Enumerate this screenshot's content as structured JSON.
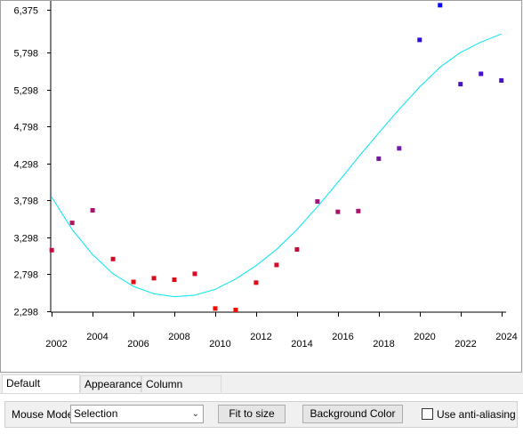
{
  "chart_data": {
    "type": "scatter",
    "y_ticks": [
      "6,375",
      "5,798",
      "5,298",
      "4,798",
      "4,298",
      "3,798",
      "3,298",
      "2,798",
      "2,298"
    ],
    "y_tick_values": [
      6375,
      5798,
      5298,
      4798,
      4298,
      3798,
      3298,
      2798,
      2298
    ],
    "x_tick_labels": [
      "2002",
      "2004",
      "2006",
      "2008",
      "2010",
      "2012",
      "2014",
      "2016",
      "2018",
      "2020",
      "2022",
      "2024"
    ],
    "x_tick_values": [
      2002,
      2004,
      2006,
      2008,
      2010,
      2012,
      2014,
      2016,
      2018,
      2020,
      2022,
      2024
    ],
    "xlim": [
      2001.95,
      2024.1
    ],
    "ylim": [
      2280,
      6390
    ],
    "points": [
      {
        "x": 2002,
        "y": 3120,
        "color": "#c80c3c"
      },
      {
        "x": 2003,
        "y": 3490,
        "color": "#b4145a"
      },
      {
        "x": 2004,
        "y": 3660,
        "color": "#a8146a"
      },
      {
        "x": 2005,
        "y": 3000,
        "color": "#d20a2a"
      },
      {
        "x": 2006,
        "y": 2690,
        "color": "#e00a14"
      },
      {
        "x": 2007,
        "y": 2740,
        "color": "#dc0a1a"
      },
      {
        "x": 2008,
        "y": 2720,
        "color": "#dc0a1a"
      },
      {
        "x": 2009,
        "y": 2800,
        "color": "#d80a20"
      },
      {
        "x": 2010,
        "y": 2330,
        "color": "#f00a00"
      },
      {
        "x": 2011,
        "y": 2310,
        "color": "#f00a00"
      },
      {
        "x": 2012,
        "y": 2680,
        "color": "#e00a14"
      },
      {
        "x": 2013,
        "y": 2920,
        "color": "#d40a28"
      },
      {
        "x": 2014,
        "y": 3130,
        "color": "#c80c3c"
      },
      {
        "x": 2015,
        "y": 3780,
        "color": "#a01478"
      },
      {
        "x": 2016,
        "y": 3640,
        "color": "#a8146a"
      },
      {
        "x": 2017,
        "y": 3650,
        "color": "#a8146a"
      },
      {
        "x": 2018,
        "y": 4360,
        "color": "#7a14a0"
      },
      {
        "x": 2019,
        "y": 4500,
        "color": "#701aa8"
      },
      {
        "x": 2020,
        "y": 5970,
        "color": "#2c0ae0"
      },
      {
        "x": 2021,
        "y": 6440,
        "color": "#0a0af5"
      },
      {
        "x": 2022,
        "y": 5370,
        "color": "#4a12c8"
      },
      {
        "x": 2023,
        "y": 5510,
        "color": "#4212d0"
      },
      {
        "x": 2024,
        "y": 5420,
        "color": "#4812ca"
      }
    ],
    "fit_line": {
      "color": "#00e6f0",
      "x": [
        2002,
        2003,
        2004,
        2005,
        2006,
        2007,
        2008,
        2009,
        2010,
        2011,
        2012,
        2013,
        2014,
        2015,
        2016,
        2017,
        2018,
        2019,
        2020,
        2021,
        2022,
        2023,
        2024
      ],
      "y": [
        3840,
        3400,
        3060,
        2800,
        2630,
        2530,
        2490,
        2510,
        2590,
        2730,
        2910,
        3130,
        3400,
        3710,
        4040,
        4380,
        4710,
        5030,
        5330,
        5600,
        5800,
        5940,
        6050
      ]
    },
    "title": "",
    "xlabel": "",
    "ylabel": ""
  },
  "tabs": [
    "Default Settings",
    "Appearance",
    "Column Selection"
  ],
  "toolbar": {
    "mouse_mode_label": "Mouse Mode",
    "mouse_mode_value": "Selection",
    "fit_button": "Fit to size",
    "bg_button": "Background Color",
    "antialias_label": "Use anti-aliasing"
  }
}
